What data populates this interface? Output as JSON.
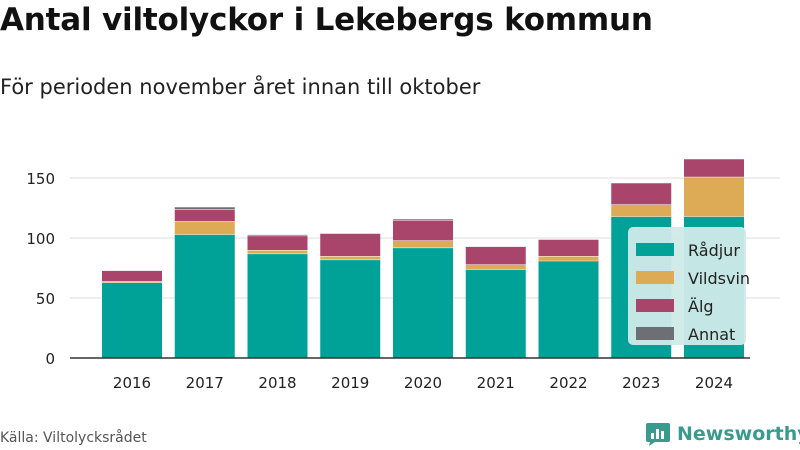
{
  "header": {
    "title": "Antal viltolyckor i Lekebergs kommun",
    "subtitle": "För perioden november året innan till oktober"
  },
  "footer": {
    "source": "Källa: Viltolycksrådet",
    "brand_name": "Newsworthy",
    "brand_icon": "newsworthy-logo-icon"
  },
  "colors": {
    "Rådjur": "#00a196",
    "Vildsvin": "#ddaa55",
    "Älg": "#a9446a",
    "Annat": "#6e6e76",
    "grid": "#dddddd",
    "axis": "#333333",
    "legend_bg": "#cfeae8",
    "brand": "#3b9a8e"
  },
  "chart_data": {
    "type": "bar",
    "stacked": true,
    "categories": [
      "2016",
      "2017",
      "2018",
      "2019",
      "2020",
      "2021",
      "2022",
      "2023",
      "2024"
    ],
    "series": [
      {
        "name": "Rådjur",
        "values": [
          63,
          103,
          87,
          82,
          92,
          74,
          81,
          118,
          118
        ]
      },
      {
        "name": "Vildsvin",
        "values": [
          1,
          11,
          3,
          3,
          6,
          4,
          4,
          10,
          33
        ]
      },
      {
        "name": "Älg",
        "values": [
          9,
          10,
          12,
          19,
          17,
          15,
          14,
          18,
          15
        ]
      },
      {
        "name": "Annat",
        "values": [
          0,
          2,
          1,
          0,
          1,
          0,
          0,
          0,
          0
        ]
      }
    ],
    "ylim": [
      0,
      170
    ],
    "yticks": [
      0,
      50,
      100,
      150
    ],
    "grid": true,
    "legend_position": "right"
  }
}
